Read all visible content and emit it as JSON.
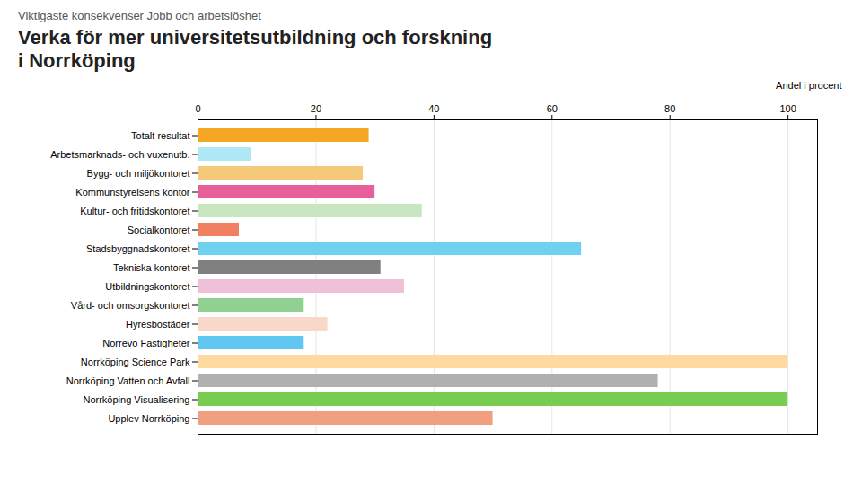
{
  "chart_data": {
    "type": "bar",
    "orientation": "horizontal",
    "subtitle": "Viktigaste konsekvenser Jobb och arbetslöshet",
    "title": "Verka för mer universitetsutbildning och forskning\ni Norrköping",
    "xlabel": "Andel i procent",
    "categories": [
      "Totalt resultat",
      "Arbetsmarknads- och vuxenutb.",
      "Bygg- och miljökontoret",
      "Kommunstyrelsens kontor",
      "Kultur- och fritidskontoret",
      "Socialkontoret",
      "Stadsbyggnadskontoret",
      "Tekniska kontoret",
      "Utbildningskontoret",
      "Vård- och omsorgskontoret",
      "Hyresbostäder",
      "Norrevo Fastigheter",
      "Norrköping Science Park",
      "Norrköping Vatten och Avfall",
      "Norrköping Visualisering",
      "Upplev Norrköping"
    ],
    "values": [
      29,
      9,
      28,
      30,
      38,
      7,
      65,
      31,
      35,
      18,
      22,
      18,
      100,
      78,
      100,
      50
    ],
    "colors": [
      "#F5A623",
      "#ADE8F4",
      "#F5C97A",
      "#E8609A",
      "#C8E6C0",
      "#F08060",
      "#70D0F0",
      "#808080",
      "#F0C0D8",
      "#90D090",
      "#F8D8C8",
      "#60C8F0",
      "#FFD9A0",
      "#B0B0B0",
      "#78CC50",
      "#F0A080"
    ],
    "xlim": [
      0,
      105
    ],
    "xticks": [
      0,
      20,
      40,
      60,
      80,
      100
    ],
    "grid": true
  }
}
